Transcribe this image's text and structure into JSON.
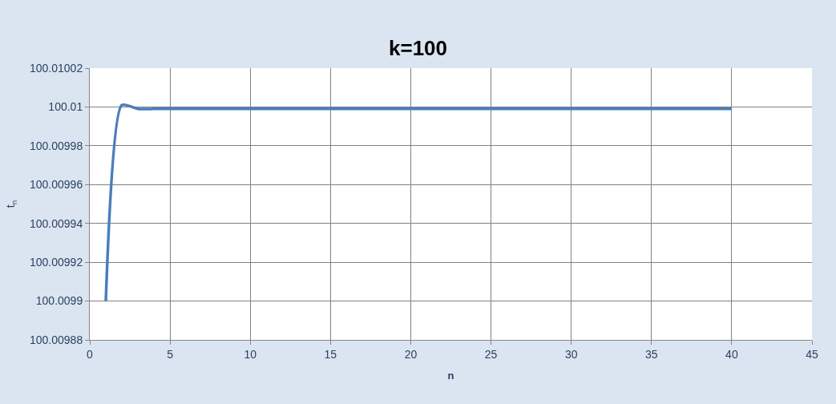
{
  "chart_data": {
    "type": "line",
    "title": "k=100",
    "xlabel": "n",
    "ylabel": "t$_{n}$",
    "x": [
      1,
      2,
      3,
      4,
      5,
      6,
      7,
      8,
      9,
      10,
      11,
      12,
      13,
      14,
      15,
      16,
      17,
      18,
      19,
      20,
      21,
      22,
      23,
      24,
      25,
      26,
      27,
      28,
      29,
      30,
      31,
      32,
      33,
      34,
      35,
      36,
      37,
      38,
      39,
      40
    ],
    "series": [
      {
        "color": "#4a7ebb",
        "values": [
          100.0099,
          100.010001,
          100.009999,
          100.009999,
          100.009999,
          100.009999,
          100.009999,
          100.009999,
          100.009999,
          100.009999,
          100.009999,
          100.009999,
          100.009999,
          100.009999,
          100.009999,
          100.009999,
          100.009999,
          100.009999,
          100.009999,
          100.009999,
          100.009999,
          100.009999,
          100.009999,
          100.009999,
          100.009999,
          100.009999,
          100.009999,
          100.009999,
          100.009999,
          100.009999,
          100.009999,
          100.009999,
          100.009999,
          100.009999,
          100.009999,
          100.009999,
          100.009999,
          100.009999,
          100.009999,
          100.009999
        ]
      }
    ],
    "xlim": [
      0,
      45
    ],
    "xticks": [
      0,
      5,
      10,
      15,
      20,
      25,
      30,
      35,
      40,
      45
    ],
    "ylim": [
      100.00988,
      100.01002
    ],
    "yticks": [
      {
        "value": 100.00988,
        "label": "100.00988"
      },
      {
        "value": 100.0099,
        "label": "100.0099"
      },
      {
        "value": 100.00992,
        "label": "100.00992"
      },
      {
        "value": 100.00994,
        "label": "100.00994"
      },
      {
        "value": 100.00996,
        "label": "100.00996"
      },
      {
        "value": 100.00998,
        "label": "100.00998"
      },
      {
        "value": 100.01,
        "label": "100.01"
      },
      {
        "value": 100.01002,
        "label": "100.01002"
      }
    ],
    "grid": true,
    "marker": "none",
    "line_style": "solid"
  }
}
